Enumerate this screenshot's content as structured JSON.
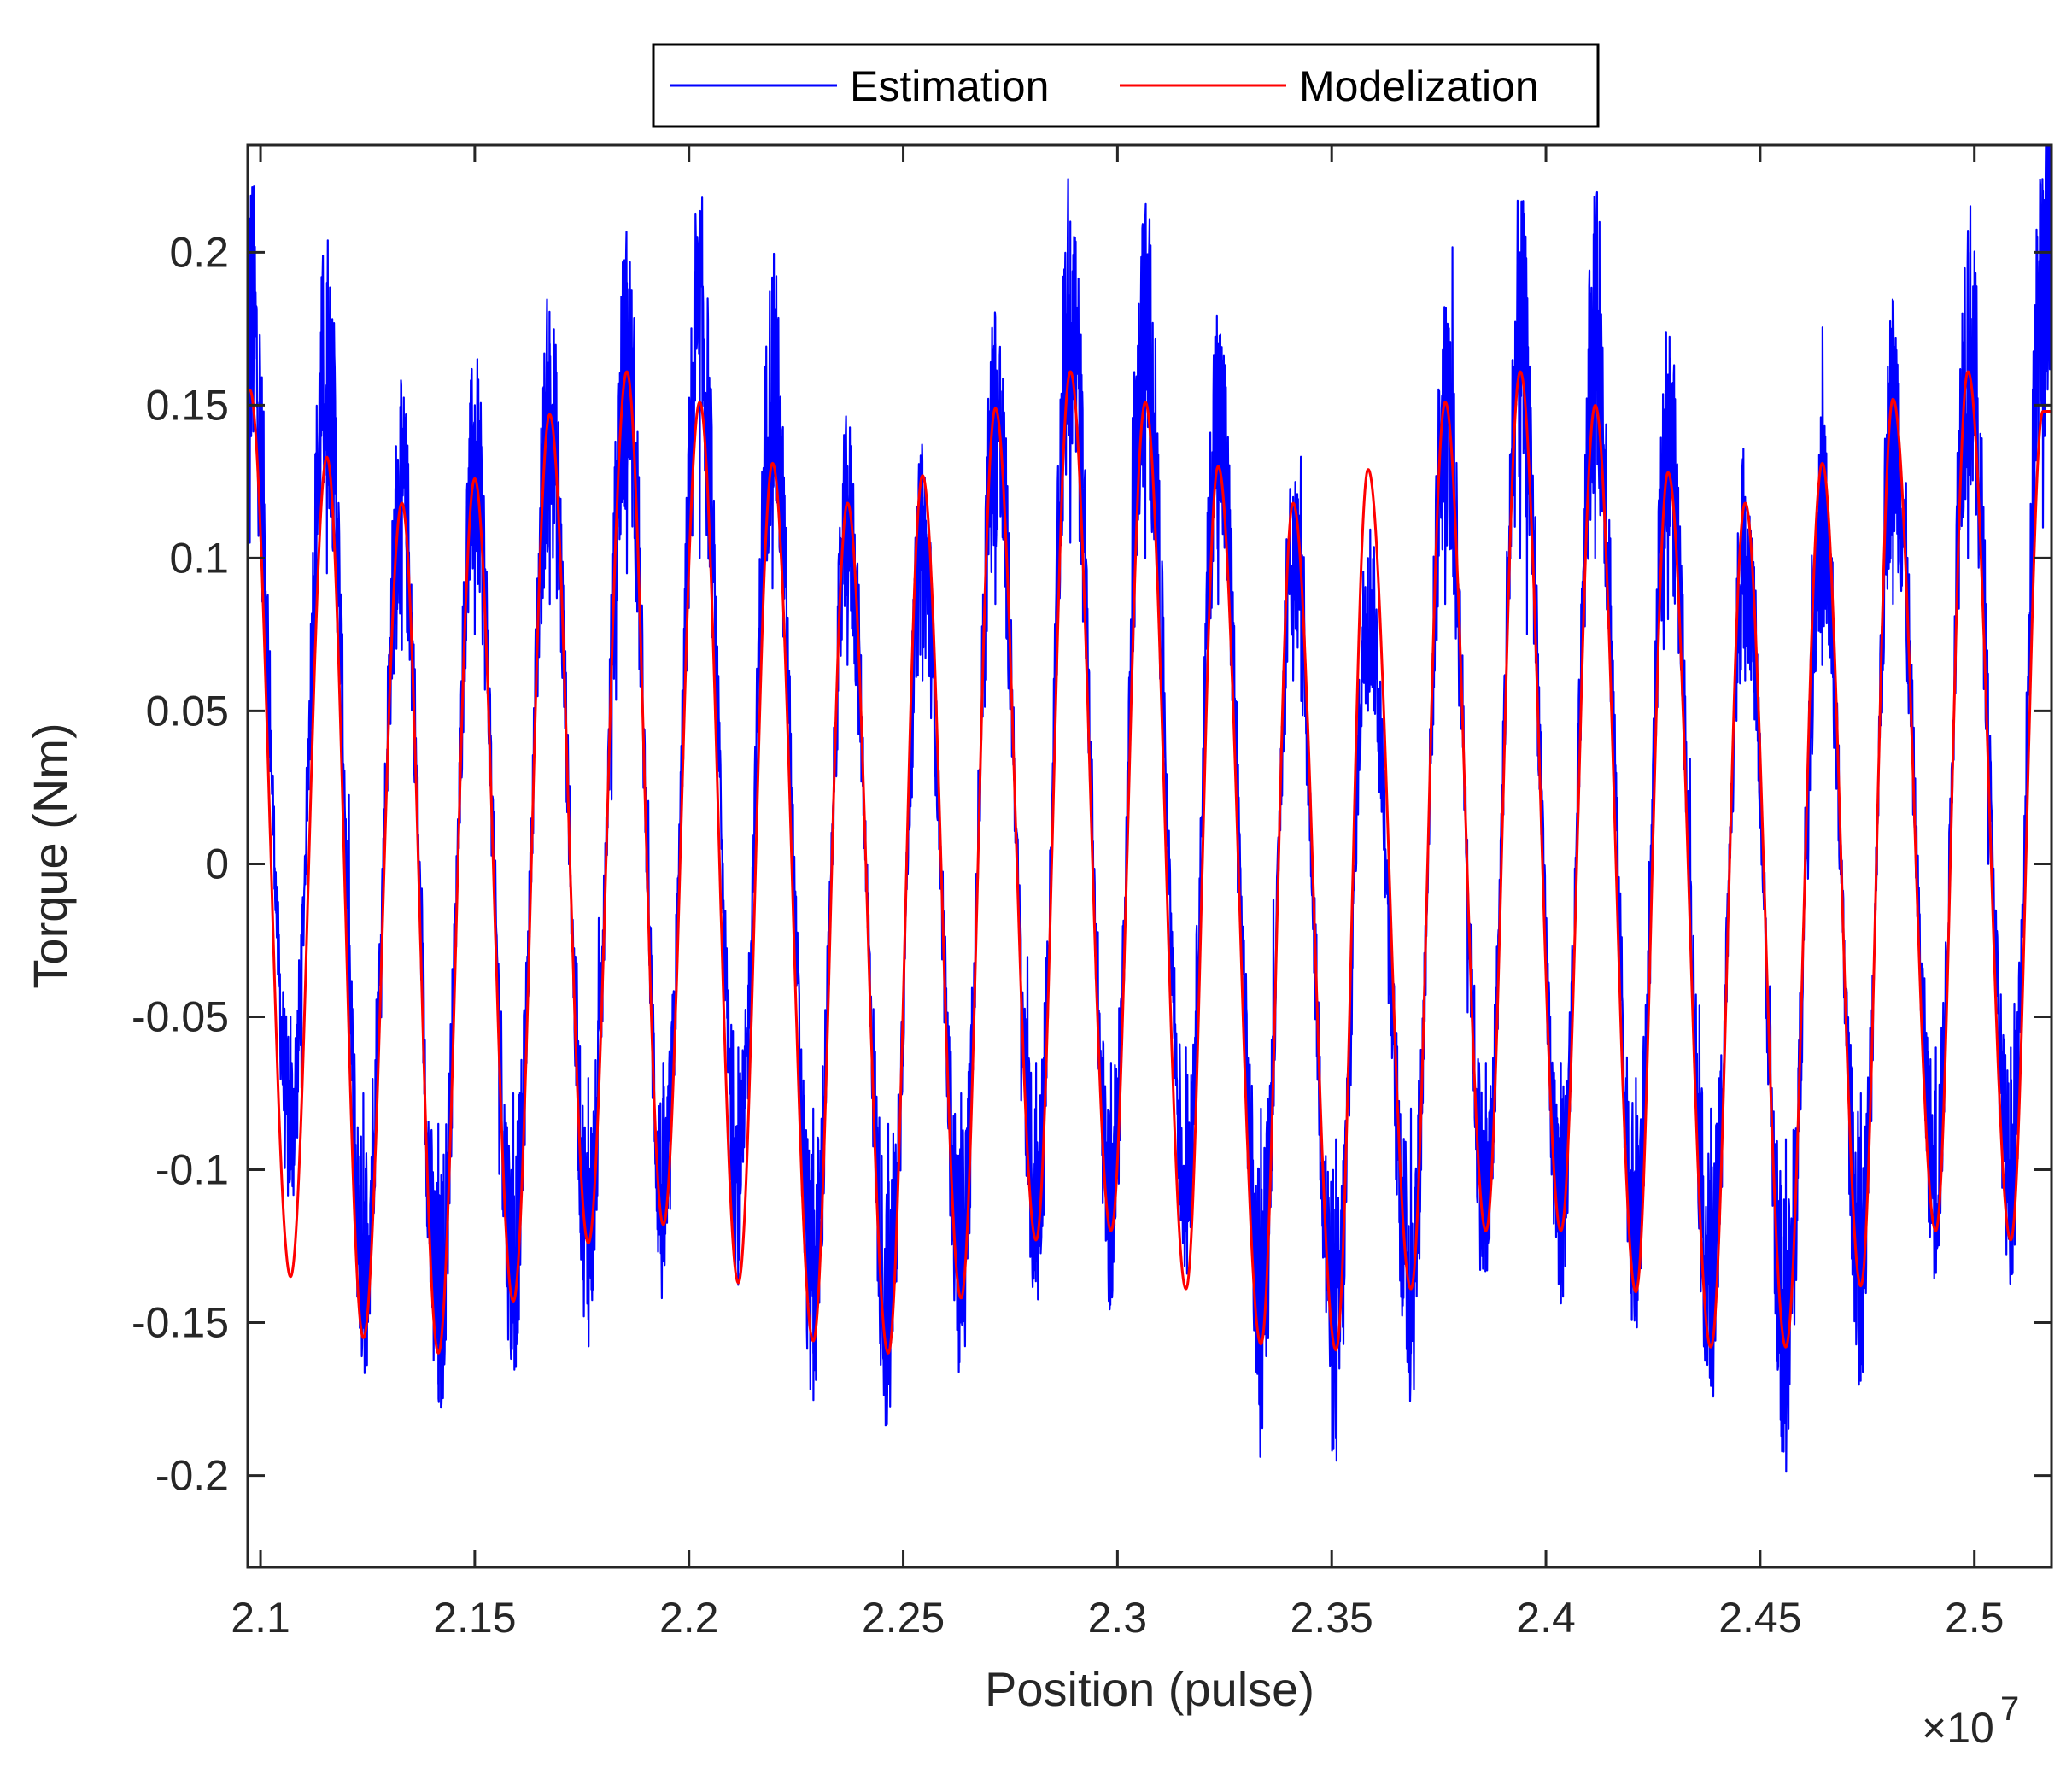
{
  "chart_data": {
    "type": "line",
    "xlabel": "Position (pulse)",
    "ylabel": "Torque (Nm)",
    "x_multiplier_base": "×10",
    "x_multiplier_exp": "7",
    "xlim": [
      2.097,
      2.518
    ],
    "ylim": [
      -0.23,
      0.235
    ],
    "x_ticks": [
      2.1,
      2.15,
      2.2,
      2.25,
      2.3,
      2.35,
      2.4,
      2.45,
      2.5
    ],
    "x_tick_labels": [
      "2.1",
      "2.15",
      "2.2",
      "2.25",
      "2.3",
      "2.35",
      "2.4",
      "2.45",
      "2.5"
    ],
    "y_ticks": [
      -0.2,
      -0.15,
      -0.1,
      -0.05,
      0,
      0.05,
      0.1,
      0.15,
      0.2
    ],
    "y_tick_labels": [
      "-0.2",
      "-0.15",
      "-0.1",
      "-0.05",
      "0",
      "0.05",
      "0.1",
      "0.15",
      "0.2"
    ],
    "grid": false,
    "legend_position": "top-outside",
    "series": [
      {
        "name": "Estimation",
        "color": "#0000ff",
        "style": "noisy",
        "peaks": [
          [
            2.0975,
            0.21
          ],
          [
            2.1155,
            0.19
          ],
          [
            2.133,
            0.14
          ],
          [
            2.15,
            0.15
          ],
          [
            2.1675,
            0.17
          ],
          [
            2.1855,
            0.19
          ],
          [
            2.2025,
            0.2
          ],
          [
            2.2195,
            0.18
          ],
          [
            2.237,
            0.13
          ],
          [
            2.2545,
            0.12
          ],
          [
            2.2715,
            0.17
          ],
          [
            2.289,
            0.21
          ],
          [
            2.3065,
            0.2
          ],
          [
            2.3235,
            0.17
          ],
          [
            2.341,
            0.12
          ],
          [
            2.3585,
            0.1
          ],
          [
            2.3765,
            0.17
          ],
          [
            2.394,
            0.2
          ],
          [
            2.4115,
            0.2
          ],
          [
            2.4285,
            0.16
          ],
          [
            2.4465,
            0.12
          ],
          [
            2.4645,
            0.13
          ],
          [
            2.481,
            0.17
          ],
          [
            2.4985,
            0.2
          ],
          [
            2.516,
            0.22
          ]
        ],
        "troughs": [
          [
            2.107,
            -0.1
          ],
          [
            2.124,
            -0.15
          ],
          [
            2.1415,
            -0.17
          ],
          [
            2.159,
            -0.15
          ],
          [
            2.1765,
            -0.14
          ],
          [
            2.194,
            -0.13
          ],
          [
            2.2115,
            -0.12
          ],
          [
            2.229,
            -0.16
          ],
          [
            2.2465,
            -0.17
          ],
          [
            2.2635,
            -0.15
          ],
          [
            2.281,
            -0.13
          ],
          [
            2.2985,
            -0.13
          ],
          [
            2.316,
            -0.12
          ],
          [
            2.3335,
            -0.16
          ],
          [
            2.351,
            -0.18
          ],
          [
            2.3685,
            -0.16
          ],
          [
            2.386,
            -0.13
          ],
          [
            2.4035,
            -0.13
          ],
          [
            2.421,
            -0.14
          ],
          [
            2.4385,
            -0.16
          ],
          [
            2.456,
            -0.18
          ],
          [
            2.4735,
            -0.15
          ],
          [
            2.491,
            -0.12
          ],
          [
            2.5085,
            -0.12
          ]
        ]
      },
      {
        "name": "Modelization",
        "color": "#ff0000",
        "style": "smooth",
        "peaks": [
          [
            2.0975,
            0.155
          ],
          [
            2.1155,
            0.133
          ],
          [
            2.133,
            0.118
          ],
          [
            2.15,
            0.126
          ],
          [
            2.1675,
            0.147
          ],
          [
            2.1855,
            0.161
          ],
          [
            2.2025,
            0.151
          ],
          [
            2.2195,
            0.131
          ],
          [
            2.237,
            0.118
          ],
          [
            2.2545,
            0.127
          ],
          [
            2.2715,
            0.149
          ],
          [
            2.289,
            0.161
          ],
          [
            2.3065,
            0.151
          ],
          [
            2.3235,
            0.13
          ],
          [
            2.341,
            0.118
          ],
          [
            2.3585,
            0.129
          ],
          [
            2.3765,
            0.151
          ],
          [
            2.394,
            0.161
          ],
          [
            2.4115,
            0.15
          ],
          [
            2.4285,
            0.128
          ],
          [
            2.4465,
            0.118
          ],
          [
            2.4645,
            0.131
          ],
          [
            2.481,
            0.152
          ],
          [
            2.4985,
            0.161
          ],
          [
            2.516,
            0.148
          ]
        ],
        "troughs": [
          [
            2.107,
            -0.135
          ],
          [
            2.124,
            -0.155
          ],
          [
            2.1415,
            -0.16
          ],
          [
            2.159,
            -0.143
          ],
          [
            2.1765,
            -0.124
          ],
          [
            2.194,
            -0.118
          ],
          [
            2.2115,
            -0.137
          ],
          [
            2.229,
            -0.156
          ],
          [
            2.2465,
            -0.16
          ],
          [
            2.2635,
            -0.142
          ],
          [
            2.281,
            -0.123
          ],
          [
            2.2985,
            -0.12
          ],
          [
            2.316,
            -0.139
          ],
          [
            2.3335,
            -0.157
          ],
          [
            2.351,
            -0.159
          ],
          [
            2.3685,
            -0.139
          ],
          [
            2.386,
            -0.12
          ],
          [
            2.4035,
            -0.12
          ],
          [
            2.421,
            -0.14
          ],
          [
            2.4385,
            -0.158
          ],
          [
            2.456,
            -0.158
          ],
          [
            2.4735,
            -0.138
          ],
          [
            2.491,
            -0.12
          ],
          [
            2.5085,
            -0.123
          ]
        ]
      }
    ]
  }
}
